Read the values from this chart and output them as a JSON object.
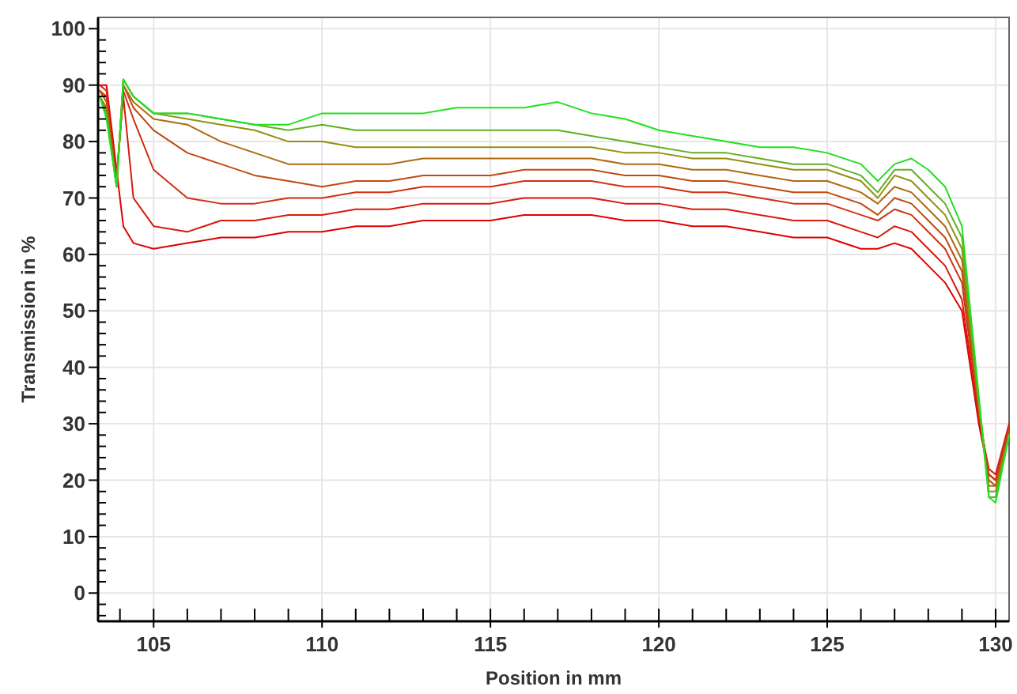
{
  "chart_data": {
    "type": "line",
    "xlabel": "Position in mm",
    "ylabel": "Transmission in %",
    "xlim": [
      103.35,
      130.4
    ],
    "ylim": [
      -5,
      102
    ],
    "xticks": [
      {
        "value": 104,
        "label": null
      },
      105,
      {
        "value": 106,
        "label": null
      },
      {
        "value": 107,
        "label": null
      },
      {
        "value": 108,
        "label": null
      },
      {
        "value": 109,
        "label": null
      },
      110,
      {
        "value": 111,
        "label": null
      },
      {
        "value": 112,
        "label": null
      },
      {
        "value": 113,
        "label": null
      },
      {
        "value": 114,
        "label": null
      },
      115,
      {
        "value": 116,
        "label": null
      },
      {
        "value": 117,
        "label": null
      },
      {
        "value": 118,
        "label": null
      },
      {
        "value": 119,
        "label": null
      },
      120,
      {
        "value": 121,
        "label": null
      },
      {
        "value": 122,
        "label": null
      },
      {
        "value": 123,
        "label": null
      },
      {
        "value": 124,
        "label": null
      },
      125,
      {
        "value": 126,
        "label": null
      },
      {
        "value": 127,
        "label": null
      },
      {
        "value": 128,
        "label": null
      },
      {
        "value": 129,
        "label": null
      },
      130
    ],
    "yticks": [
      {
        "value": -4,
        "label": null
      },
      {
        "value": -2,
        "label": null
      },
      0,
      {
        "value": 2,
        "label": null
      },
      {
        "value": 4,
        "label": null
      },
      {
        "value": 6,
        "label": null
      },
      {
        "value": 8,
        "label": null
      },
      10,
      {
        "value": 12,
        "label": null
      },
      {
        "value": 14,
        "label": null
      },
      {
        "value": 16,
        "label": null
      },
      {
        "value": 18,
        "label": null
      },
      20,
      {
        "value": 22,
        "label": null
      },
      {
        "value": 24,
        "label": null
      },
      {
        "value": 26,
        "label": null
      },
      {
        "value": 28,
        "label": null
      },
      30,
      {
        "value": 32,
        "label": null
      },
      {
        "value": 34,
        "label": null
      },
      {
        "value": 36,
        "label": null
      },
      {
        "value": 38,
        "label": null
      },
      40,
      {
        "value": 42,
        "label": null
      },
      {
        "value": 44,
        "label": null
      },
      {
        "value": 46,
        "label": null
      },
      {
        "value": 48,
        "label": null
      },
      50,
      {
        "value": 52,
        "label": null
      },
      {
        "value": 54,
        "label": null
      },
      {
        "value": 56,
        "label": null
      },
      {
        "value": 58,
        "label": null
      },
      60,
      {
        "value": 62,
        "label": null
      },
      {
        "value": 64,
        "label": null
      },
      {
        "value": 66,
        "label": null
      },
      {
        "value": 68,
        "label": null
      },
      70,
      {
        "value": 72,
        "label": null
      },
      {
        "value": 74,
        "label": null
      },
      {
        "value": 76,
        "label": null
      },
      {
        "value": 78,
        "label": null
      },
      80,
      {
        "value": 82,
        "label": null
      },
      {
        "value": 84,
        "label": null
      },
      {
        "value": 86,
        "label": null
      },
      {
        "value": 88,
        "label": null
      },
      90,
      {
        "value": 92,
        "label": null
      },
      {
        "value": 94,
        "label": null
      },
      {
        "value": 96,
        "label": null
      },
      {
        "value": 98,
        "label": null
      },
      100
    ],
    "grid": true,
    "marker": "none",
    "line_style": "solid",
    "x": [
      103.4,
      103.6,
      103.9,
      104.1,
      104.4,
      105,
      106,
      107,
      108,
      109,
      110,
      111,
      112,
      113,
      114,
      115,
      116,
      117,
      118,
      119,
      120,
      121,
      122,
      123,
      124,
      125,
      126,
      126.5,
      127,
      127.5,
      128,
      128.5,
      129,
      129.5,
      129.8,
      130,
      130.4
    ],
    "series": [
      {
        "color": "#e00000",
        "values": [
          90,
          90,
          75,
          65,
          62,
          61,
          62,
          63,
          63,
          64,
          64,
          65,
          65,
          66,
          66,
          66,
          67,
          67,
          67,
          66,
          66,
          65,
          65,
          64,
          63,
          63,
          61,
          61,
          62,
          61,
          58,
          55,
          50,
          30,
          21,
          20,
          29
        ]
      },
      {
        "color": "#d81a0a",
        "values": [
          90,
          89,
          74,
          88,
          70,
          65,
          64,
          66,
          66,
          67,
          67,
          68,
          68,
          69,
          69,
          69,
          70,
          70,
          70,
          69,
          69,
          68,
          68,
          67,
          66,
          66,
          64,
          63,
          65,
          64,
          61,
          58,
          52,
          31,
          22,
          21,
          30
        ]
      },
      {
        "color": "#d03010",
        "values": [
          89,
          88,
          73,
          89,
          84,
          75,
          70,
          69,
          69,
          70,
          70,
          71,
          71,
          72,
          72,
          72,
          73,
          73,
          73,
          72,
          72,
          71,
          71,
          70,
          69,
          69,
          67,
          66,
          68,
          67,
          64,
          61,
          55,
          32,
          21,
          20,
          29
        ]
      },
      {
        "color": "#c04a10",
        "values": [
          89,
          87,
          73,
          90,
          86,
          82,
          78,
          76,
          74,
          73,
          72,
          73,
          73,
          74,
          74,
          74,
          75,
          75,
          75,
          74,
          74,
          73,
          73,
          72,
          71,
          71,
          69,
          67,
          70,
          69,
          66,
          63,
          57,
          33,
          20,
          19,
          29
        ]
      },
      {
        "color": "#b06810",
        "values": [
          88,
          86,
          72,
          90,
          87,
          84,
          83,
          80,
          78,
          76,
          76,
          76,
          76,
          77,
          77,
          77,
          77,
          77,
          77,
          76,
          76,
          75,
          75,
          74,
          73,
          73,
          71,
          69,
          72,
          71,
          68,
          65,
          59,
          33,
          19,
          19,
          28
        ]
      },
      {
        "color": "#909010",
        "values": [
          88,
          85,
          72,
          91,
          88,
          85,
          84,
          83,
          82,
          80,
          80,
          79,
          79,
          79,
          79,
          79,
          79,
          79,
          79,
          78,
          78,
          77,
          77,
          76,
          75,
          75,
          73,
          70,
          74,
          73,
          70,
          67,
          61,
          34,
          18,
          18,
          28
        ]
      },
      {
        "color": "#60b020",
        "values": [
          88,
          85,
          72,
          91,
          88,
          85,
          85,
          84,
          83,
          82,
          83,
          82,
          82,
          82,
          82,
          82,
          82,
          82,
          81,
          80,
          79,
          78,
          78,
          77,
          76,
          76,
          74,
          71,
          75,
          75,
          72,
          69,
          63,
          34,
          17,
          17,
          28
        ]
      },
      {
        "color": "#20e020",
        "values": [
          88,
          84,
          72,
          91,
          88,
          85,
          85,
          84,
          83,
          83,
          85,
          85,
          85,
          85,
          86,
          86,
          86,
          87,
          85,
          84,
          82,
          81,
          80,
          79,
          79,
          78,
          76,
          73,
          76,
          77,
          75,
          72,
          65,
          35,
          17,
          16,
          28
        ]
      }
    ]
  }
}
